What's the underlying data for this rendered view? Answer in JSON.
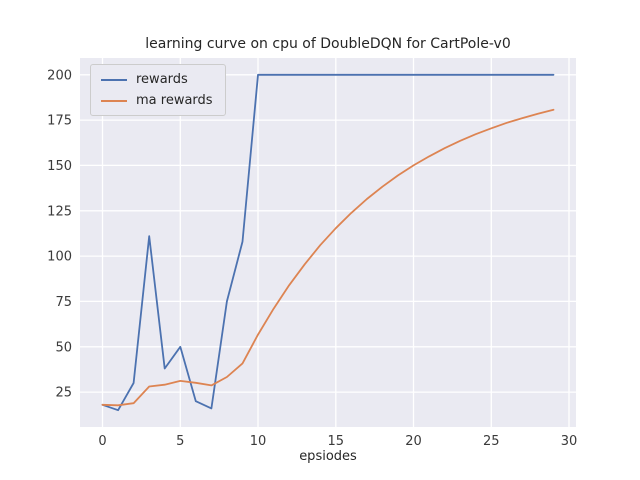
{
  "figure": {
    "title": "learning curve on cpu of DoubleDQN for CartPole-v0",
    "xlabel": "epsiodes"
  },
  "colors": {
    "figure_bg": "#ffffff",
    "axes_bg": "#eaeaf2",
    "grid": "#ffffff",
    "text": "#262626",
    "rewards_line": "#4c72b0",
    "ma_rewards_line": "#dd8452"
  },
  "legend": {
    "items": [
      {
        "label": "rewards",
        "color": "#4c72b0"
      },
      {
        "label": "ma rewards",
        "color": "#dd8452"
      }
    ]
  },
  "chart_data": {
    "type": "line",
    "title": "learning curve on cpu of DoubleDQN for CartPole-v0",
    "xlabel": "epsiodes",
    "ylabel": "",
    "grid": true,
    "legend_position": "upper left",
    "x": [
      0,
      1,
      2,
      3,
      4,
      5,
      6,
      7,
      8,
      9,
      10,
      11,
      12,
      13,
      14,
      15,
      16,
      17,
      18,
      19,
      20,
      21,
      22,
      23,
      24,
      25,
      26,
      27,
      28,
      29
    ],
    "xticks": [
      0,
      5,
      10,
      15,
      20,
      25,
      30
    ],
    "yticks": [
      25,
      50,
      75,
      100,
      125,
      150,
      175,
      200
    ],
    "xlim": [
      -1.45,
      30.45
    ],
    "ylim": [
      5.75,
      209.25
    ],
    "series": [
      {
        "name": "rewards",
        "color": "#4c72b0",
        "values": [
          18,
          15,
          30,
          111,
          38,
          50,
          20,
          16,
          75,
          108,
          200,
          200,
          200,
          200,
          200,
          200,
          200,
          200,
          200,
          200,
          200,
          200,
          200,
          200,
          200,
          200,
          200,
          200,
          200,
          200
        ]
      },
      {
        "name": "ma rewards",
        "color": "#dd8452",
        "values": [
          18.0,
          17.7,
          18.9,
          28.1,
          29.1,
          31.2,
          30.1,
          28.7,
          33.3,
          40.8,
          56.7,
          71.0,
          83.9,
          95.5,
          106.0,
          115.4,
          123.8,
          131.5,
          138.3,
          144.5,
          150.0,
          155.0,
          159.5,
          163.6,
          167.2,
          170.5,
          173.5,
          176.1,
          178.5,
          180.7
        ]
      }
    ]
  }
}
